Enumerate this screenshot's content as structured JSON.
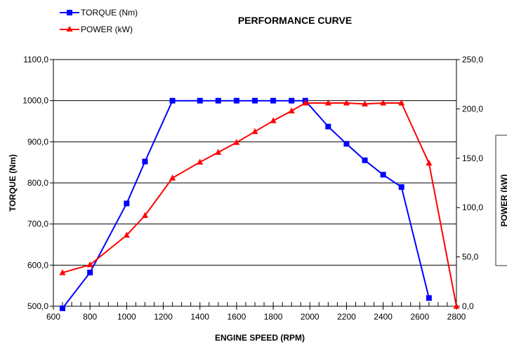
{
  "chart_data": {
    "type": "line",
    "title": "PERFORMANCE CURVE",
    "xlabel": "ENGINE SPEED (RPM)",
    "ylabel": "TORQUE (Nm)",
    "y2label": "POWER  (kW)",
    "xlim": [
      600,
      2800
    ],
    "ylim": [
      500,
      1100
    ],
    "y2lim": [
      0,
      250
    ],
    "x_ticks": [
      "600",
      "800",
      "1000",
      "1200",
      "1400",
      "1600",
      "1800",
      "2000",
      "2200",
      "2400",
      "2600",
      "2800"
    ],
    "y_ticks": [
      "500,0",
      "600,0",
      "700,0",
      "800,0",
      "900,0",
      "1000,0",
      "1100,0"
    ],
    "y2_ticks": [
      "0,0",
      "50,0",
      "100,0",
      "150,0",
      "200,0",
      "250,0"
    ],
    "grid": "horizontal",
    "legend_position": "top-left",
    "series": [
      {
        "name": "TORQUE (Nm)",
        "axis": "left",
        "color": "#0000ff",
        "marker": "square",
        "x": [
          650,
          800,
          1000,
          1100,
          1250,
          1400,
          1500,
          1600,
          1700,
          1800,
          1900,
          1975,
          2100,
          2200,
          2300,
          2400,
          2500,
          2650
        ],
        "y": [
          495,
          582,
          750,
          852,
          1000,
          1000,
          1000,
          1000,
          1000,
          1000,
          1000,
          1000,
          937,
          895,
          855,
          820,
          790,
          520
        ]
      },
      {
        "name": "POWER (kW)",
        "axis": "right",
        "color": "#ff0000",
        "marker": "triangle",
        "x": [
          650,
          800,
          1000,
          1100,
          1250,
          1400,
          1500,
          1600,
          1700,
          1800,
          1900,
          1975,
          2100,
          2200,
          2300,
          2400,
          2500,
          2650,
          2800
        ],
        "y": [
          34,
          42,
          72,
          92,
          130,
          146,
          156,
          166,
          177,
          188,
          198,
          206,
          206,
          206,
          205,
          206,
          206,
          145,
          0
        ]
      }
    ]
  }
}
